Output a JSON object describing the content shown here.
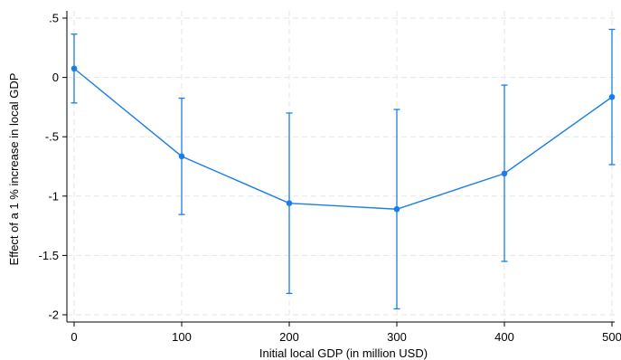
{
  "chart_data": {
    "type": "line",
    "title": "",
    "xlabel": "Initial local GDP (in million USD)",
    "ylabel": "Effect of a 1 % increase in local GDP",
    "x": [
      0,
      100,
      200,
      300,
      400,
      500
    ],
    "series": [
      {
        "values": [
          0.075,
          -0.665,
          -1.06,
          -1.11,
          -0.81,
          -0.165
        ],
        "ci_lower": [
          -0.215,
          -1.155,
          -1.82,
          -1.95,
          -1.55,
          -0.735
        ],
        "ci_upper": [
          0.365,
          -0.175,
          -0.3,
          -0.27,
          -0.065,
          0.405
        ],
        "color": "#1a7ee8"
      }
    ],
    "xticks": [
      0,
      100,
      200,
      300,
      400,
      500
    ],
    "xtick_labels": [
      "0",
      "100",
      "200",
      "300",
      "400",
      "500"
    ],
    "yticks": [
      0.5,
      0,
      -0.5,
      -1,
      -1.5,
      -2
    ],
    "ytick_labels": [
      ".5",
      "0",
      "-.5",
      "-1",
      "-1.5",
      "-2"
    ],
    "xlim": [
      0,
      500
    ],
    "ylim": [
      -2.05,
      0.55
    ],
    "grid": true
  }
}
